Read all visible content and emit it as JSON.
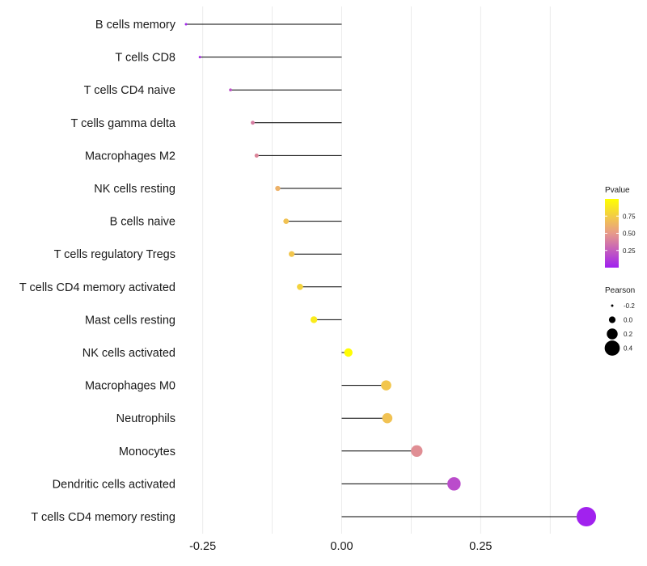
{
  "chart_data": {
    "type": "lollipop",
    "title": "",
    "xlabel": "",
    "ylabel": "",
    "xlim": [
      -0.28,
      0.44
    ],
    "x_ticks": [
      -0.25,
      0.0,
      0.25
    ],
    "x_tick_labels": [
      "-0.25",
      "0.00",
      "0.25"
    ],
    "grid": true,
    "categories": [
      "B cells memory",
      "T cells CD8",
      "T cells CD4 naive",
      "T cells gamma delta",
      "Macrophages M2",
      "NK cells resting",
      "B cells naive",
      "T cells regulatory  Tregs",
      "T cells CD4 memory activated",
      "Mast cells resting",
      "NK cells activated",
      "Macrophages M0",
      "Neutrophils",
      "Monocytes",
      "Dendritic cells activated",
      "T cells CD4 memory resting"
    ],
    "pearson": [
      -0.28,
      -0.255,
      -0.2,
      -0.16,
      -0.153,
      -0.115,
      -0.1,
      -0.09,
      -0.075,
      -0.05,
      0.012,
      0.08,
      0.082,
      0.135,
      0.202,
      0.44
    ],
    "pvalue": [
      0.02,
      0.05,
      0.2,
      0.38,
      0.42,
      0.62,
      0.7,
      0.72,
      0.78,
      0.9,
      0.99,
      0.72,
      0.7,
      0.45,
      0.18,
      0.01
    ],
    "legend_pvalue": {
      "title": "Pvalue",
      "ticks": [
        0.75,
        0.5,
        0.25
      ],
      "tick_labels": [
        "0.75",
        "0.50",
        "0.25"
      ],
      "range": [
        0.0,
        1.0
      ],
      "color_low": "#a020f0",
      "color_mid": "#e79a8a",
      "color_high": "#ffff00"
    },
    "legend_pearson": {
      "title": "Pearson",
      "values": [
        -0.2,
        0.0,
        0.2,
        0.4
      ],
      "labels": [
        "-0.2",
        "0.0",
        "0.2",
        "0.4"
      ]
    }
  }
}
